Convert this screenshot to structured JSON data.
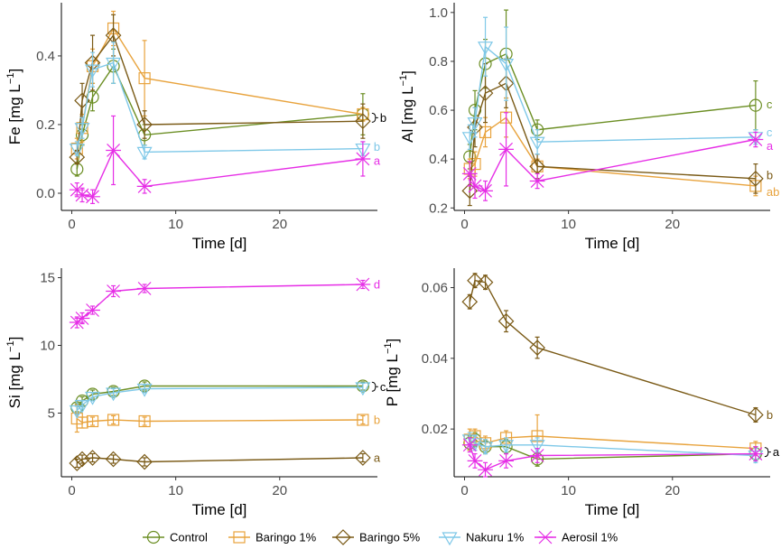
{
  "colors": {
    "Control": "#6b8e23",
    "Baringo 1%": "#e8a33d",
    "Baringo 5%": "#7a5a16",
    "Nakuru 1%": "#7ec8e8",
    "Aerosil 1%": "#e62ee6"
  },
  "legend": [
    {
      "name": "Control",
      "marker": "circle"
    },
    {
      "name": "Baringo 1%",
      "marker": "square"
    },
    {
      "name": "Baringo 5%",
      "marker": "diamond"
    },
    {
      "name": "Nakuru 1%",
      "marker": "triangle-down"
    },
    {
      "name": "Aerosil 1%",
      "marker": "star"
    }
  ],
  "chart_data": [
    {
      "type": "line",
      "panel": "Fe",
      "ylabel_main": "Fe [mg  L",
      "ylabel_sup": "−1",
      "ylabel_end": "]",
      "xlabel": "Time [d]",
      "xlim": [
        -1,
        29.4
      ],
      "ylim": [
        -0.05,
        0.555
      ],
      "xticks": [
        0,
        10,
        20
      ],
      "yticks": [
        0.0,
        0.2,
        0.4
      ],
      "ytick_labels": [
        "0.0",
        "0.2",
        "0.4"
      ],
      "series": [
        {
          "name": "Control",
          "x": [
            0.5,
            1,
            2,
            4,
            7,
            28
          ],
          "y": [
            0.07,
            0.17,
            0.28,
            0.37,
            0.17,
            0.23
          ],
          "err": [
            0.02,
            0.03,
            0.04,
            0.05,
            0.03,
            0.06
          ]
        },
        {
          "name": "Baringo 1%",
          "x": [
            0.5,
            1,
            2,
            4,
            7,
            28
          ],
          "y": [
            0.13,
            0.19,
            0.37,
            0.48,
            0.335,
            0.23
          ],
          "err": [
            0.03,
            0.04,
            0.05,
            0.05,
            0.11,
            0.02
          ]
        },
        {
          "name": "Baringo 5%",
          "x": [
            0.5,
            1,
            2,
            4,
            7,
            28
          ],
          "y": [
            0.105,
            0.27,
            0.38,
            0.46,
            0.2,
            0.21
          ],
          "err": [
            0.02,
            0.05,
            0.08,
            0.06,
            0.04,
            0.05
          ]
        },
        {
          "name": "Nakuru 1%",
          "x": [
            0.5,
            1,
            2,
            4,
            7,
            28
          ],
          "y": [
            0.13,
            0.19,
            0.36,
            0.38,
            0.12,
            0.13
          ],
          "err": [
            0.02,
            0.03,
            0.05,
            0.06,
            0.02,
            0.02
          ]
        },
        {
          "name": "Aerosil 1%",
          "x": [
            0.5,
            1,
            2,
            4,
            7,
            28
          ],
          "y": [
            0.01,
            -0.005,
            -0.01,
            0.125,
            0.02,
            0.1
          ],
          "err": [
            0.02,
            0.02,
            0.02,
            0.1,
            0.02,
            0.05
          ]
        }
      ],
      "sig_labels": [
        {
          "text": "b",
          "series": "Baringo 5%",
          "bracket": true,
          "y": 0.22
        },
        {
          "text": "b",
          "series": "Nakuru 1%",
          "bracket": false,
          "y": 0.135
        },
        {
          "text": "a",
          "series": "Aerosil 1%",
          "bracket": false,
          "y": 0.095
        }
      ]
    },
    {
      "type": "line",
      "panel": "Al",
      "ylabel_main": "Al [mg  L",
      "ylabel_sup": "−1",
      "ylabel_end": "]",
      "xlabel": "Time [d]",
      "xlim": [
        -1,
        29.4
      ],
      "ylim": [
        0.19,
        1.04
      ],
      "xticks": [
        0,
        10,
        20
      ],
      "yticks": [
        0.2,
        0.4,
        0.6,
        0.8,
        1.0
      ],
      "ytick_labels": [
        "0.2",
        "0.4",
        "0.6",
        "0.8",
        "1.0"
      ],
      "series": [
        {
          "name": "Control",
          "x": [
            0.5,
            1,
            2,
            4,
            7,
            28
          ],
          "y": [
            0.41,
            0.6,
            0.79,
            0.83,
            0.52,
            0.62
          ],
          "err": [
            0.05,
            0.08,
            0.1,
            0.18,
            0.04,
            0.1
          ]
        },
        {
          "name": "Baringo 1%",
          "x": [
            0.5,
            1,
            2,
            4,
            7,
            28
          ],
          "y": [
            0.36,
            0.38,
            0.51,
            0.57,
            0.37,
            0.29
          ],
          "err": [
            0.04,
            0.05,
            0.06,
            0.08,
            0.03,
            0.04
          ]
        },
        {
          "name": "Baringo 5%",
          "x": [
            0.5,
            1,
            2,
            4,
            7,
            28
          ],
          "y": [
            0.27,
            0.53,
            0.67,
            0.71,
            0.37,
            0.32
          ],
          "err": [
            0.06,
            0.08,
            0.12,
            0.1,
            0.05,
            0.06
          ]
        },
        {
          "name": "Nakuru 1%",
          "x": [
            0.5,
            1,
            2,
            4,
            7,
            28
          ],
          "y": [
            0.49,
            0.55,
            0.86,
            0.79,
            0.47,
            0.49
          ],
          "err": [
            0.05,
            0.06,
            0.12,
            0.15,
            0.05,
            0.03
          ]
        },
        {
          "name": "Aerosil 1%",
          "x": [
            0.5,
            1,
            2,
            4,
            7,
            28
          ],
          "y": [
            0.34,
            0.29,
            0.27,
            0.44,
            0.31,
            0.48
          ],
          "err": [
            0.05,
            0.05,
            0.04,
            0.15,
            0.03,
            0.03
          ]
        }
      ],
      "sig_labels": [
        {
          "text": "c",
          "series": "Control",
          "bracket": false,
          "y": 0.625
        },
        {
          "text": "c",
          "series": "Nakuru 1%",
          "bracket": false,
          "y": 0.51
        },
        {
          "text": "a",
          "series": "Aerosil 1%",
          "bracket": false,
          "y": 0.455
        },
        {
          "text": "b",
          "series": "Baringo 5%",
          "bracket": false,
          "y": 0.335
        },
        {
          "text": "ab",
          "series": "Baringo 1%",
          "bracket": false,
          "y": 0.265
        }
      ]
    },
    {
      "type": "line",
      "panel": "Si",
      "ylabel_main": "Si [mg  L",
      "ylabel_sup": "−1",
      "ylabel_end": "]",
      "xlabel": "Time [d]",
      "xlim": [
        -1,
        29.4
      ],
      "ylim": [
        0.3,
        15.7
      ],
      "xticks": [
        0,
        10,
        20
      ],
      "yticks": [
        5,
        10,
        15
      ],
      "ytick_labels": [
        "5",
        "10",
        "15"
      ],
      "series": [
        {
          "name": "Control",
          "x": [
            0.5,
            1,
            2,
            4,
            7,
            28
          ],
          "y": [
            5.4,
            5.9,
            6.4,
            6.6,
            7.0,
            7.0
          ],
          "err": [
            0.3,
            0.3,
            0.3,
            0.3,
            0.3,
            0.3
          ]
        },
        {
          "name": "Baringo 1%",
          "x": [
            0.5,
            1,
            2,
            4,
            7,
            28
          ],
          "y": [
            4.6,
            4.3,
            4.4,
            4.5,
            4.4,
            4.5
          ],
          "err": [
            1.0,
            0.4,
            0.3,
            0.3,
            0.3,
            0.3
          ]
        },
        {
          "name": "Baringo 5%",
          "x": [
            0.5,
            1,
            2,
            4,
            7,
            28
          ],
          "y": [
            1.3,
            1.6,
            1.7,
            1.6,
            1.4,
            1.7
          ],
          "err": [
            0.3,
            0.3,
            0.3,
            0.3,
            0.3,
            0.3
          ]
        },
        {
          "name": "Nakuru 1%",
          "x": [
            0.5,
            1,
            2,
            4,
            7,
            28
          ],
          "y": [
            5.2,
            5.6,
            6.2,
            6.5,
            6.8,
            6.9
          ],
          "err": [
            0.3,
            0.3,
            0.3,
            0.3,
            0.3,
            0.3
          ]
        },
        {
          "name": "Aerosil 1%",
          "x": [
            0.5,
            1,
            2,
            4,
            7,
            28
          ],
          "y": [
            11.7,
            12.0,
            12.6,
            14.0,
            14.2,
            14.5
          ],
          "err": [
            0.4,
            0.4,
            0.3,
            0.4,
            0.3,
            0.3
          ]
        }
      ],
      "sig_labels": [
        {
          "text": "d",
          "series": "Aerosil 1%",
          "bracket": false,
          "y": 14.5
        },
        {
          "text": "c",
          "series": "Control",
          "bracket": true,
          "y": 6.95
        },
        {
          "text": "b",
          "series": "Baringo 1%",
          "bracket": false,
          "y": 4.5
        },
        {
          "text": "a",
          "series": "Baringo 5%",
          "bracket": false,
          "y": 1.7
        }
      ]
    },
    {
      "type": "line",
      "panel": "P",
      "ylabel_main": "P [mg  L",
      "ylabel_sup": "−1",
      "ylabel_end": "]",
      "xlabel": "Time [d]",
      "xlim": [
        -1,
        29.4
      ],
      "ylim": [
        0.0065,
        0.0655
      ],
      "xticks": [
        0,
        10,
        20
      ],
      "yticks": [
        0.02,
        0.04,
        0.06
      ],
      "ytick_labels": [
        "0.02",
        "0.04",
        "0.06"
      ],
      "series": [
        {
          "name": "Control",
          "x": [
            0.5,
            1,
            2,
            4,
            7,
            28
          ],
          "y": [
            0.016,
            0.017,
            0.015,
            0.015,
            0.0115,
            0.013
          ],
          "err": [
            0.002,
            0.002,
            0.002,
            0.002,
            0.002,
            0.002
          ]
        },
        {
          "name": "Baringo 1%",
          "x": [
            0.5,
            1,
            2,
            4,
            7,
            28
          ],
          "y": [
            0.017,
            0.018,
            0.016,
            0.0175,
            0.018,
            0.0145
          ],
          "err": [
            0.003,
            0.002,
            0.002,
            0.002,
            0.006,
            0.002
          ]
        },
        {
          "name": "Baringo 5%",
          "x": [
            0.5,
            1,
            2,
            4,
            7,
            28
          ],
          "y": [
            0.056,
            0.062,
            0.0615,
            0.0505,
            0.043,
            0.024
          ],
          "err": [
            0.002,
            0.002,
            0.002,
            0.003,
            0.003,
            0.002
          ]
        },
        {
          "name": "Nakuru 1%",
          "x": [
            0.5,
            1,
            2,
            4,
            7,
            28
          ],
          "y": [
            0.017,
            0.016,
            0.015,
            0.0155,
            0.0155,
            0.0125
          ],
          "err": [
            0.002,
            0.002,
            0.002,
            0.002,
            0.002,
            0.002
          ]
        },
        {
          "name": "Aerosil 1%",
          "x": [
            0.5,
            1,
            2,
            4,
            7,
            28
          ],
          "y": [
            0.0155,
            0.011,
            0.0085,
            0.011,
            0.0125,
            0.013
          ],
          "err": [
            0.002,
            0.002,
            0.002,
            0.002,
            0.002,
            0.002
          ]
        }
      ],
      "sig_labels": [
        {
          "text": "b",
          "series": "Baringo 5%",
          "bracket": false,
          "y": 0.024
        },
        {
          "text": "a",
          "series": "Control",
          "bracket": true,
          "y": 0.0135
        }
      ]
    }
  ]
}
